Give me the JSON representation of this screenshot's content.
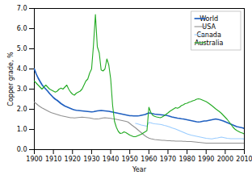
{
  "chart_data": {
    "type": "line",
    "xlabel": "Year",
    "ylabel": "Copper grade, %",
    "xlim": [
      1900,
      2010
    ],
    "ylim": [
      0,
      7
    ],
    "xticks": [
      1900,
      1910,
      1920,
      1930,
      1940,
      1950,
      1960,
      1970,
      1980,
      1990,
      2000,
      2010
    ],
    "yticks": [
      0,
      1,
      2,
      3,
      4,
      5,
      6,
      7
    ],
    "grid": false,
    "legend": "upper right",
    "x": [
      1900,
      1901,
      1902,
      1903,
      1904,
      1905,
      1906,
      1907,
      1908,
      1909,
      1910,
      1911,
      1912,
      1913,
      1914,
      1915,
      1916,
      1917,
      1918,
      1919,
      1920,
      1921,
      1922,
      1923,
      1924,
      1925,
      1926,
      1927,
      1928,
      1929,
      1930,
      1931,
      1932,
      1933,
      1934,
      1935,
      1936,
      1937,
      1938,
      1939,
      1940,
      1941,
      1942,
      1943,
      1944,
      1945,
      1946,
      1947,
      1948,
      1949,
      1950,
      1951,
      1952,
      1953,
      1954,
      1955,
      1956,
      1957,
      1958,
      1959,
      1960,
      1961,
      1962,
      1963,
      1964,
      1965,
      1966,
      1967,
      1968,
      1969,
      1970,
      1971,
      1972,
      1973,
      1974,
      1975,
      1976,
      1977,
      1978,
      1979,
      1980,
      1981,
      1982,
      1983,
      1984,
      1985,
      1986,
      1987,
      1988,
      1989,
      1990,
      1991,
      1992,
      1993,
      1994,
      1995,
      1996,
      1997,
      1998,
      1999,
      2000,
      2001,
      2002,
      2003,
      2004,
      2005,
      2006,
      2007,
      2008,
      2009,
      2010
    ],
    "series": [
      {
        "name": "World",
        "color": "#2060c0",
        "values": [
          4.0,
          3.75,
          3.55,
          3.38,
          3.22,
          3.1,
          3.0,
          2.9,
          2.78,
          2.68,
          2.58,
          2.5,
          2.44,
          2.36,
          2.28,
          2.22,
          2.16,
          2.12,
          2.08,
          2.04,
          2.0,
          1.97,
          1.95,
          1.94,
          1.93,
          1.92,
          1.91,
          1.9,
          1.89,
          1.88,
          1.87,
          1.88,
          1.9,
          1.92,
          1.93,
          1.94,
          1.93,
          1.92,
          1.91,
          1.9,
          1.88,
          1.86,
          1.84,
          1.82,
          1.8,
          1.78,
          1.76,
          1.74,
          1.72,
          1.7,
          1.68,
          1.68,
          1.67,
          1.67,
          1.67,
          1.68,
          1.7,
          1.72,
          1.74,
          1.78,
          1.82,
          1.8,
          1.78,
          1.76,
          1.75,
          1.74,
          1.73,
          1.72,
          1.71,
          1.7,
          1.68,
          1.65,
          1.62,
          1.6,
          1.58,
          1.56,
          1.55,
          1.53,
          1.52,
          1.5,
          1.48,
          1.46,
          1.44,
          1.42,
          1.4,
          1.38,
          1.37,
          1.38,
          1.4,
          1.42,
          1.42,
          1.44,
          1.46,
          1.48,
          1.5,
          1.52,
          1.5,
          1.48,
          1.45,
          1.42,
          1.38,
          1.34,
          1.3,
          1.26,
          1.22,
          1.18,
          1.14,
          1.12,
          1.1,
          1.08,
          1.05
        ]
      },
      {
        "name": "USA",
        "color": "#909090",
        "values": [
          2.35,
          2.28,
          2.2,
          2.13,
          2.07,
          2.02,
          1.97,
          1.92,
          1.87,
          1.83,
          1.8,
          1.77,
          1.74,
          1.71,
          1.68,
          1.66,
          1.64,
          1.62,
          1.6,
          1.58,
          1.58,
          1.57,
          1.58,
          1.59,
          1.6,
          1.61,
          1.6,
          1.59,
          1.58,
          1.57,
          1.55,
          1.53,
          1.52,
          1.52,
          1.53,
          1.55,
          1.57,
          1.58,
          1.57,
          1.56,
          1.55,
          1.53,
          1.52,
          1.5,
          1.48,
          1.46,
          1.44,
          1.42,
          1.4,
          1.37,
          1.3,
          1.22,
          1.15,
          1.08,
          1.0,
          0.92,
          0.84,
          0.76,
          0.68,
          0.62,
          0.57,
          0.54,
          0.52,
          0.5,
          0.49,
          0.48,
          0.47,
          0.46,
          0.46,
          0.45,
          0.44,
          0.44,
          0.43,
          0.43,
          0.42,
          0.42,
          0.42,
          0.42,
          0.41,
          0.41,
          0.4,
          0.4,
          0.4,
          0.39,
          0.38,
          0.37,
          0.36,
          0.35,
          0.34,
          0.33,
          0.32,
          0.32,
          0.32,
          0.32,
          0.32,
          0.32,
          0.32,
          0.32,
          0.32,
          0.32,
          0.32,
          0.32,
          0.32,
          0.32,
          0.32,
          0.32,
          0.32,
          0.32,
          0.32,
          0.32,
          0.32
        ]
      },
      {
        "name": "Canada",
        "color": "#99ccff",
        "values": [
          null,
          null,
          null,
          null,
          null,
          null,
          null,
          null,
          null,
          null,
          null,
          null,
          null,
          null,
          null,
          null,
          null,
          null,
          null,
          null,
          null,
          null,
          null,
          null,
          null,
          null,
          null,
          null,
          null,
          null,
          null,
          null,
          null,
          null,
          null,
          null,
          null,
          null,
          null,
          null,
          null,
          null,
          null,
          null,
          null,
          null,
          null,
          null,
          null,
          null,
          null,
          null,
          null,
          1.3,
          1.28,
          1.25,
          1.22,
          1.2,
          1.18,
          1.16,
          1.35,
          1.33,
          1.3,
          1.28,
          1.27,
          1.26,
          1.25,
          1.23,
          1.2,
          1.18,
          1.15,
          1.12,
          1.08,
          1.05,
          1.02,
          0.98,
          0.94,
          0.9,
          0.86,
          0.82,
          0.78,
          0.75,
          0.72,
          0.7,
          0.68,
          0.66,
          0.64,
          0.62,
          0.6,
          0.58,
          0.56,
          0.55,
          0.54,
          0.53,
          0.55,
          0.57,
          0.58,
          0.6,
          0.62,
          0.6,
          0.58,
          0.56,
          0.55,
          0.54,
          0.54,
          0.54,
          0.54,
          0.54,
          0.54,
          0.54,
          0.52
        ]
      },
      {
        "name": "Australia",
        "color": "#22aa22",
        "values": [
          3.4,
          3.3,
          3.2,
          3.1,
          3.0,
          3.1,
          3.2,
          3.1,
          3.0,
          2.95,
          2.9,
          2.85,
          2.9,
          3.0,
          3.05,
          3.0,
          3.1,
          3.2,
          3.0,
          2.85,
          2.75,
          2.7,
          2.8,
          2.85,
          2.9,
          3.0,
          3.2,
          3.4,
          3.5,
          3.8,
          4.0,
          5.2,
          6.7,
          5.1,
          4.8,
          3.95,
          3.9,
          4.0,
          4.5,
          4.2,
          3.5,
          2.2,
          1.4,
          1.1,
          0.9,
          0.8,
          0.82,
          0.88,
          0.84,
          0.78,
          0.72,
          0.68,
          0.64,
          0.64,
          0.68,
          0.72,
          0.76,
          0.82,
          0.88,
          0.94,
          2.1,
          1.85,
          1.7,
          1.65,
          1.62,
          1.6,
          1.58,
          1.62,
          1.68,
          1.75,
          1.82,
          1.9,
          1.96,
          2.02,
          2.08,
          2.05,
          2.1,
          2.18,
          2.22,
          2.28,
          2.3,
          2.35,
          2.38,
          2.42,
          2.45,
          2.5,
          2.52,
          2.5,
          2.46,
          2.42,
          2.38,
          2.32,
          2.25,
          2.18,
          2.1,
          2.02,
          1.95,
          1.88,
          1.8,
          1.7,
          1.6,
          1.5,
          1.38,
          1.25,
          1.12,
          1.02,
          0.95,
          0.9,
          0.85,
          0.82,
          0.78
        ]
      }
    ]
  }
}
